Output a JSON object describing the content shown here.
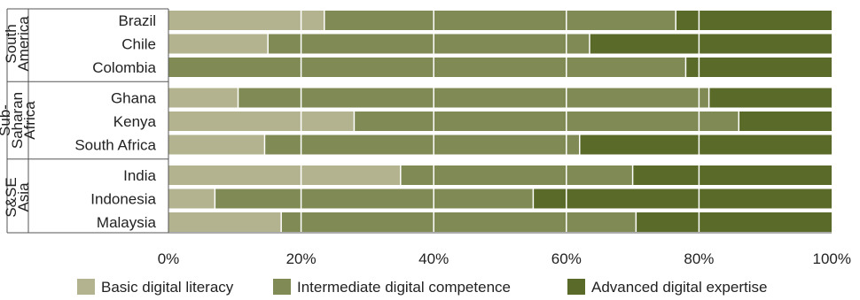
{
  "chart_data": {
    "type": "bar",
    "orientation": "horizontal",
    "stacked": true,
    "groups": [
      {
        "name": "South\nAmerica",
        "categories": [
          "Brazil",
          "Chile",
          "Colombia"
        ]
      },
      {
        "name": "Sub-\nSaharan\nAfrica",
        "categories": [
          "Ghana",
          "Kenya",
          "South Africa"
        ]
      },
      {
        "name": "S&SE\nAsia",
        "categories": [
          "India",
          "Indonesia",
          "Malaysia"
        ]
      }
    ],
    "categories": [
      "Brazil",
      "Chile",
      "Colombia",
      "Ghana",
      "Kenya",
      "South Africa",
      "India",
      "Indonesia",
      "Malaysia"
    ],
    "series": [
      {
        "name": "Basic digital literacy",
        "color": "#b3b38f",
        "values": [
          23.5,
          15,
          0,
          10.5,
          28,
          14.5,
          35,
          7,
          17
        ]
      },
      {
        "name": "Intermediate digital competence",
        "color": "#7f8a55",
        "values": [
          53,
          48.5,
          78,
          71,
          58,
          47.5,
          35,
          48,
          53.5
        ]
      },
      {
        "name": "Advanced digital expertise",
        "color": "#5a6a28",
        "values": [
          23.5,
          36.5,
          22,
          18.5,
          14,
          38,
          30,
          45,
          29.5
        ]
      }
    ],
    "xlim": [
      0,
      100
    ],
    "xticks": [
      "0%",
      "20%",
      "40%",
      "60%",
      "80%",
      "100%"
    ],
    "grid": true,
    "legend_position": "bottom"
  }
}
